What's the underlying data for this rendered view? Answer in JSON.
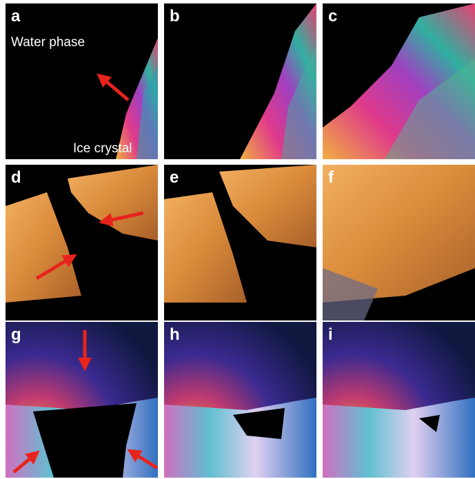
{
  "panels": [
    {
      "label": "a",
      "annotations": [
        "Water phase",
        "Ice crystal"
      ]
    },
    {
      "label": "b"
    },
    {
      "label": "c"
    },
    {
      "label": "d"
    },
    {
      "label": "e"
    },
    {
      "label": "f"
    },
    {
      "label": "g"
    },
    {
      "label": "h"
    },
    {
      "label": "i"
    }
  ]
}
